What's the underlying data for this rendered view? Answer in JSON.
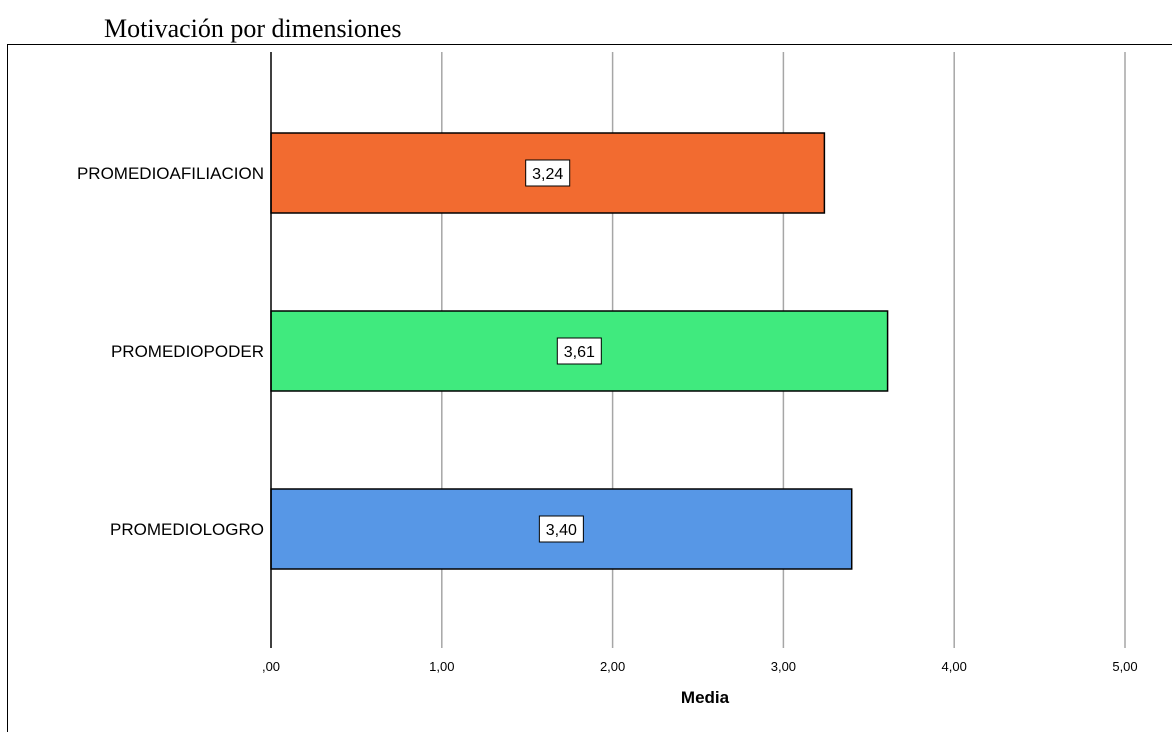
{
  "title": "Motivación por dimensiones",
  "chart_data": {
    "type": "bar",
    "orientation": "horizontal",
    "categories": [
      "PROMEDIOAFILIACION",
      "PROMEDIOPODER",
      "PROMEDIOLOGRO"
    ],
    "values": [
      3.24,
      3.61,
      3.4
    ],
    "value_labels": [
      "3,24",
      "3,61",
      "3,40"
    ],
    "colors": [
      "#f26b30",
      "#40ea7e",
      "#5797e6"
    ],
    "xlabel": "Media",
    "ylabel": "",
    "xlim": [
      0,
      5
    ],
    "x_ticks": [
      0,
      1,
      2,
      3,
      4,
      5
    ],
    "x_tick_labels": [
      ",00",
      "1,00",
      "2,00",
      "3,00",
      "4,00",
      "5,00"
    ],
    "grid": "vertical"
  }
}
